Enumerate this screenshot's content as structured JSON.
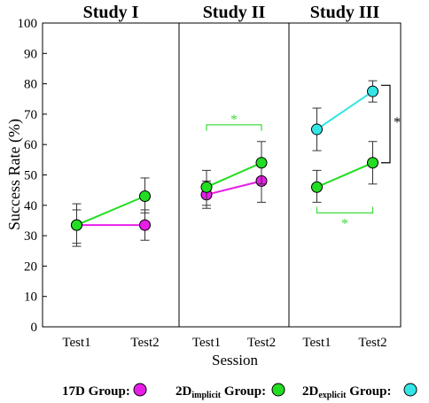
{
  "chart_data": {
    "type": "line",
    "ylabel": "Success Rate (%)",
    "xlabel": "Session",
    "ylim": [
      0,
      100
    ],
    "yticks": [
      0,
      10,
      20,
      30,
      40,
      50,
      60,
      70,
      80,
      90,
      100
    ],
    "grid": false,
    "legend_position": "bottom",
    "panels": [
      {
        "title": "Study I",
        "categories": [
          "Test1",
          "Test2"
        ],
        "series": [
          {
            "group": "17D",
            "values": [
              33.5,
              33.5
            ],
            "error_low": [
              26.5,
              28.5
            ],
            "error_high": [
              40.5,
              38.5
            ]
          },
          {
            "group": "2D_implicit",
            "values": [
              33.5,
              43
            ],
            "error_low": [
              27.5,
              37.5
            ],
            "error_high": [
              38.5,
              49
            ]
          }
        ],
        "annotations": []
      },
      {
        "title": "Study II",
        "categories": [
          "Test1",
          "Test2"
        ],
        "series": [
          {
            "group": "17D",
            "values": [
              43.5,
              48
            ],
            "error_low": [
              39,
              41
            ],
            "error_high": [
              48,
              54
            ]
          },
          {
            "group": "2D_implicit",
            "values": [
              46,
              54
            ],
            "error_low": [
              40,
              47
            ],
            "error_high": [
              51.5,
              61
            ]
          }
        ],
        "annotations": [
          {
            "text": "*",
            "color": "#3ddc3d",
            "position": "above"
          }
        ]
      },
      {
        "title": "Study III",
        "categories": [
          "Test1",
          "Test2"
        ],
        "series": [
          {
            "group": "2D_implicit",
            "values": [
              46,
              54
            ],
            "error_low": [
              41,
              47
            ],
            "error_high": [
              51.5,
              61
            ]
          },
          {
            "group": "2D_explicit",
            "values": [
              65,
              77.5
            ],
            "error_low": [
              58,
              74
            ],
            "error_high": [
              72,
              81
            ]
          }
        ],
        "annotations": [
          {
            "text": "*",
            "color": "#3ddc3d",
            "position": "below"
          },
          {
            "text": "*",
            "color": "#000000",
            "position": "right"
          }
        ]
      }
    ],
    "legend": [
      {
        "label": "17D Group:",
        "color": "#e81ee8",
        "key": "17D"
      },
      {
        "label_main": "2D",
        "label_sub": "implicit",
        "label_rest": " Group:",
        "color": "#22dd22",
        "key": "2D_implicit"
      },
      {
        "label_main": "2D",
        "label_sub": "explicit",
        "label_rest": " Group:",
        "color": "#33e5e5",
        "key": "2D_explicit"
      }
    ],
    "colors": {
      "17D": "#e81ee8",
      "2D_implicit": "#22dd22",
      "2D_explicit": "#33e5e5",
      "sig_green": "#3ddc3d"
    }
  }
}
